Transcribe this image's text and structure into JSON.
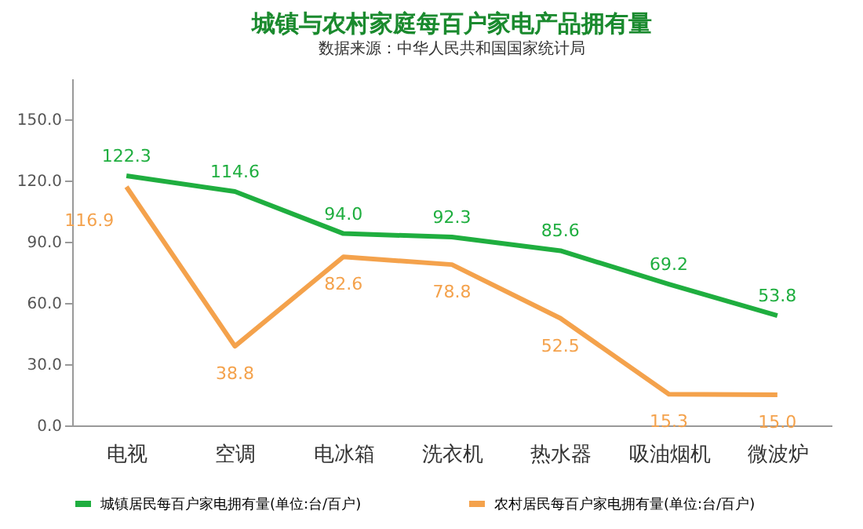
{
  "chart_data": {
    "type": "line",
    "title": "城镇与农村家庭每百户家电产品拥有量",
    "subtitle": "数据来源：中华人民共和国国家统计局",
    "categories": [
      "电视",
      "空调",
      "电冰箱",
      "洗衣机",
      "热水器",
      "吸油烟机",
      "微波炉"
    ],
    "series": [
      {
        "name": "城镇居民每百户家电拥有量(单位:台/百户)",
        "color": "#1fae3f",
        "values": [
          122.3,
          114.6,
          94.0,
          92.3,
          85.6,
          69.2,
          53.8
        ],
        "value_labels": [
          "122.3",
          "114.6",
          "94.0",
          "92.3",
          "85.6",
          "69.2",
          "53.8"
        ]
      },
      {
        "name": "农村居民每百户家电拥有量(单位:台/百户)",
        "color": "#f4a24c",
        "values": [
          116.9,
          38.8,
          82.6,
          78.8,
          52.5,
          15.3,
          15.0
        ],
        "value_labels": [
          "116.9",
          "38.8",
          "82.6",
          "78.8",
          "52.5",
          "15.3",
          "15.0"
        ]
      }
    ],
    "ylim": [
      0,
      170
    ],
    "yticks": [
      {
        "value": 0,
        "label": "0.0"
      },
      {
        "value": 30,
        "label": "30.0"
      },
      {
        "value": 60,
        "label": "60.0"
      },
      {
        "value": 90,
        "label": "90.0"
      },
      {
        "value": 120,
        "label": "120.0"
      },
      {
        "value": 150,
        "label": "150.0"
      }
    ],
    "legend": "bottom",
    "grid": false,
    "marker": "none",
    "line_style": "solid"
  }
}
